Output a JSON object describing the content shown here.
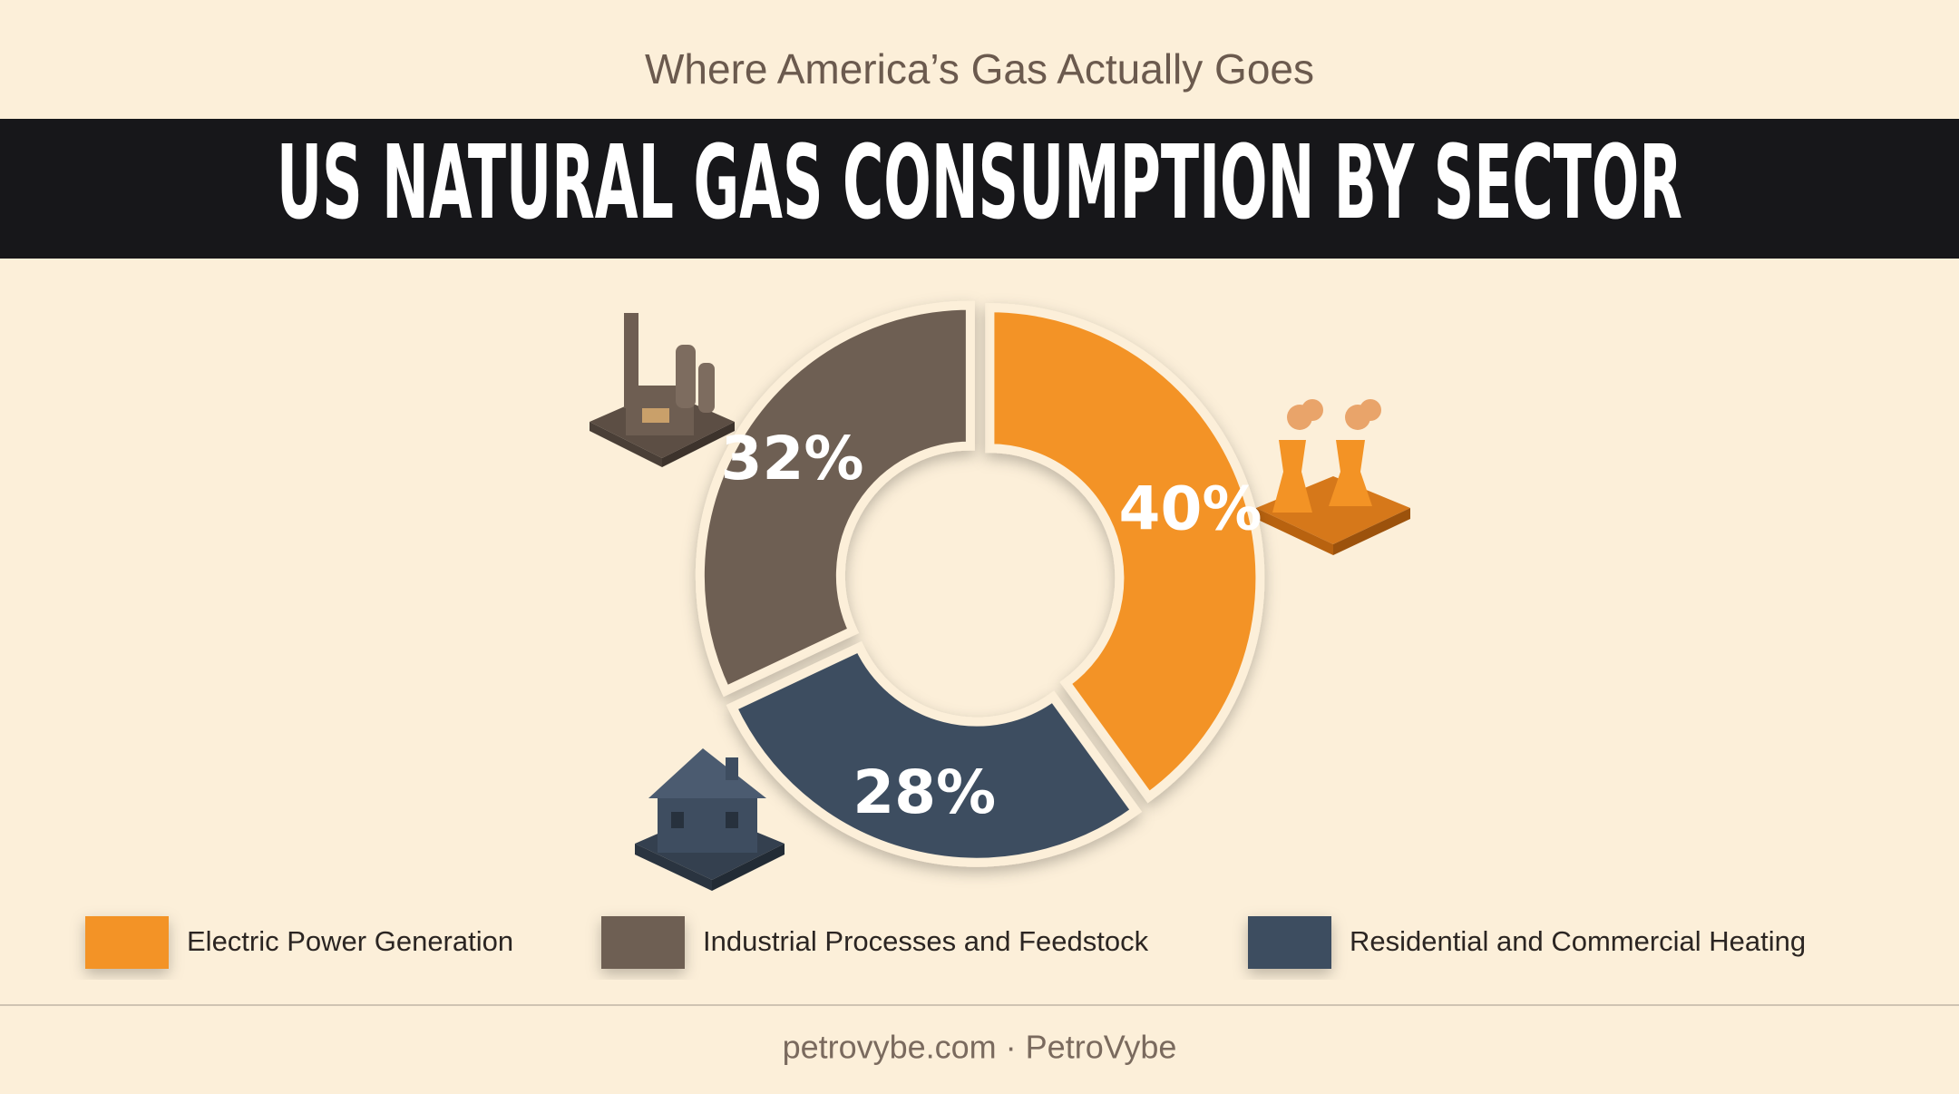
{
  "subtitle": "Where America’s Gas Actually Goes",
  "footer": "petrovybe.com · PetroVybe",
  "chart_data": {
    "type": "donut",
    "title": "US NATURAL GAS CONSUMPTION BY SECTOR",
    "categories": [
      "Electric Power Generation",
      "Industrial Processes and Feedstock",
      "Residential and Commercial Heating"
    ],
    "values": [
      40,
      32,
      28
    ],
    "value_labels": [
      "40%",
      "32%",
      "28%"
    ],
    "colors": [
      "#f39325",
      "#6e5e52",
      "#3e4d60"
    ]
  }
}
